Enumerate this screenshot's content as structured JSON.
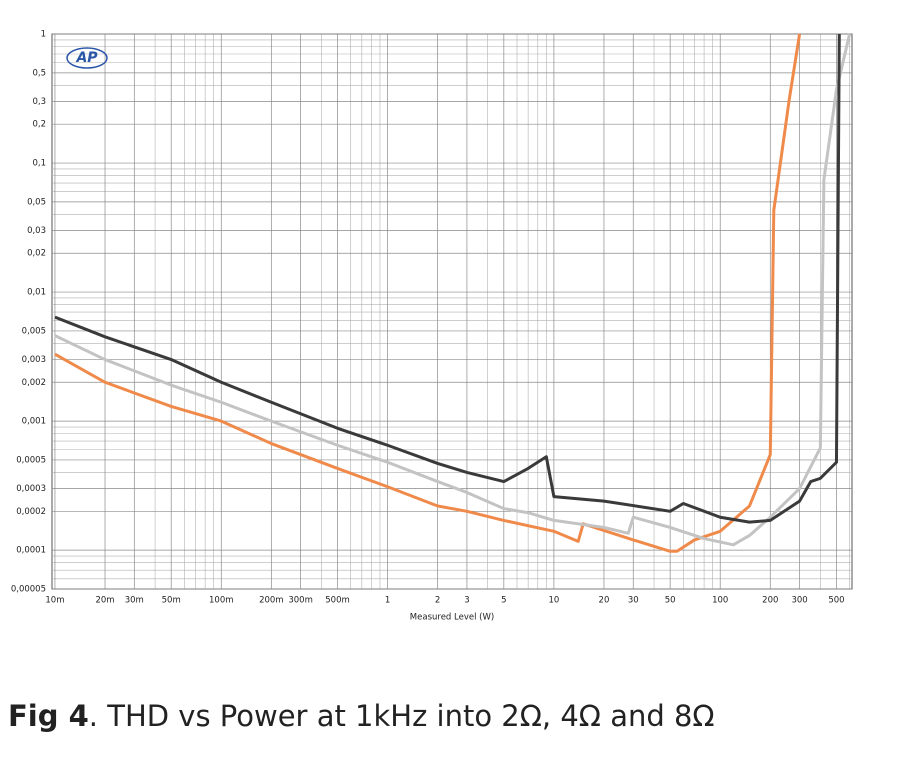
{
  "chart_data": {
    "type": "line",
    "xlabel": "Measured Level (W)",
    "logo": "AP",
    "xlog": true,
    "ylog": true,
    "grid": true,
    "xlim": [
      0.0096,
      620
    ],
    "ylim": [
      5e-05,
      1
    ],
    "xticks": [
      {
        "value": 0.01,
        "label": "10m"
      },
      {
        "value": 0.02,
        "label": "20m"
      },
      {
        "value": 0.03,
        "label": "30m"
      },
      {
        "value": 0.05,
        "label": "50m"
      },
      {
        "value": 0.1,
        "label": "100m"
      },
      {
        "value": 0.2,
        "label": "200m"
      },
      {
        "value": 0.3,
        "label": "300m"
      },
      {
        "value": 0.5,
        "label": "500m"
      },
      1,
      2,
      3,
      5,
      10,
      20,
      30,
      50,
      100,
      200,
      300,
      500
    ],
    "yticks": [
      1,
      {
        "value": 0.5,
        "label": "0,5"
      },
      {
        "value": 0.3,
        "label": "0,3"
      },
      {
        "value": 0.2,
        "label": "0,2"
      },
      {
        "value": 0.1,
        "label": "0,1"
      },
      {
        "value": 0.05,
        "label": "0,05"
      },
      {
        "value": 0.03,
        "label": "0,03"
      },
      {
        "value": 0.02,
        "label": "0,02"
      },
      {
        "value": 0.01,
        "label": "0,01"
      },
      {
        "value": 0.005,
        "label": "0,005"
      },
      {
        "value": 0.003,
        "label": "0,003"
      },
      {
        "value": 0.002,
        "label": "0,002"
      },
      {
        "value": 0.001,
        "label": "0,001"
      },
      {
        "value": 0.0005,
        "label": "0,0005"
      },
      {
        "value": 0.0003,
        "label": "0,0003"
      },
      {
        "value": 0.0002,
        "label": "0,0002"
      },
      {
        "value": 0.0001,
        "label": "0,0001"
      },
      {
        "value": 5e-05,
        "label": "0,00005"
      }
    ],
    "xminorticks": [
      0.04,
      0.06,
      0.07,
      0.08,
      0.09,
      0.4,
      0.6,
      0.7,
      0.8,
      0.9,
      4,
      6,
      7,
      8,
      9,
      40,
      60,
      70,
      80,
      90,
      400,
      600
    ],
    "yminorticks": [
      0.9,
      0.8,
      0.7,
      0.6,
      0.4,
      0.09,
      0.08,
      0.07,
      0.06,
      0.04,
      0.009,
      0.008,
      0.007,
      0.006,
      0.004,
      0.0009,
      0.0008,
      0.0007,
      0.0006,
      0.0004,
      9e-05,
      8e-05,
      7e-05,
      6e-05
    ],
    "series": [
      {
        "color": "#f08a4b",
        "x": [
          0.01,
          0.02,
          0.05,
          0.1,
          0.2,
          0.5,
          1,
          2,
          3,
          5,
          10,
          14,
          15,
          30,
          50,
          55,
          70,
          100,
          150,
          200,
          210,
          260,
          300
        ],
        "values": [
          0.0033,
          0.002,
          0.0013,
          0.001,
          0.00067,
          0.00043,
          0.00031,
          0.00022,
          0.0002,
          0.00017,
          0.00014,
          0.000117,
          0.00016,
          0.00012,
          9.8e-05,
          9.8e-05,
          0.00012,
          0.00014,
          0.00022,
          0.00055,
          0.043,
          0.31,
          1
        ]
      },
      {
        "color": "#c3c3c3",
        "x": [
          0.01,
          0.02,
          0.05,
          0.1,
          0.2,
          0.5,
          1,
          2,
          3,
          5,
          7,
          10,
          20,
          28,
          30,
          50,
          80,
          120,
          150,
          200,
          300,
          400,
          420,
          500,
          600
        ],
        "values": [
          0.0046,
          0.003,
          0.0019,
          0.0014,
          0.001,
          0.00065,
          0.00048,
          0.00034,
          0.00028,
          0.00021,
          0.000195,
          0.00017,
          0.00015,
          0.000135,
          0.00018,
          0.00015,
          0.000123,
          0.00011,
          0.00013,
          0.00018,
          0.0003,
          0.00062,
          0.074,
          0.37,
          1
        ]
      },
      {
        "color": "#3a3a3a",
        "x": [
          0.01,
          0.02,
          0.05,
          0.1,
          0.2,
          0.5,
          1,
          2,
          3,
          5,
          7,
          9,
          10,
          20,
          50,
          60,
          100,
          150,
          200,
          300,
          350,
          400,
          500,
          520
        ],
        "values": [
          0.0064,
          0.0045,
          0.003,
          0.002,
          0.0014,
          0.00088,
          0.00065,
          0.00047,
          0.0004,
          0.00034,
          0.00043,
          0.00053,
          0.00026,
          0.00024,
          0.0002,
          0.00023,
          0.00018,
          0.000165,
          0.00017,
          0.00024,
          0.00034,
          0.00036,
          0.00048,
          1
        ]
      }
    ]
  },
  "caption": {
    "label": "Fig 4",
    "text": ". THD vs Power at 1kHz into 2Ω, 4Ω and 8Ω"
  }
}
